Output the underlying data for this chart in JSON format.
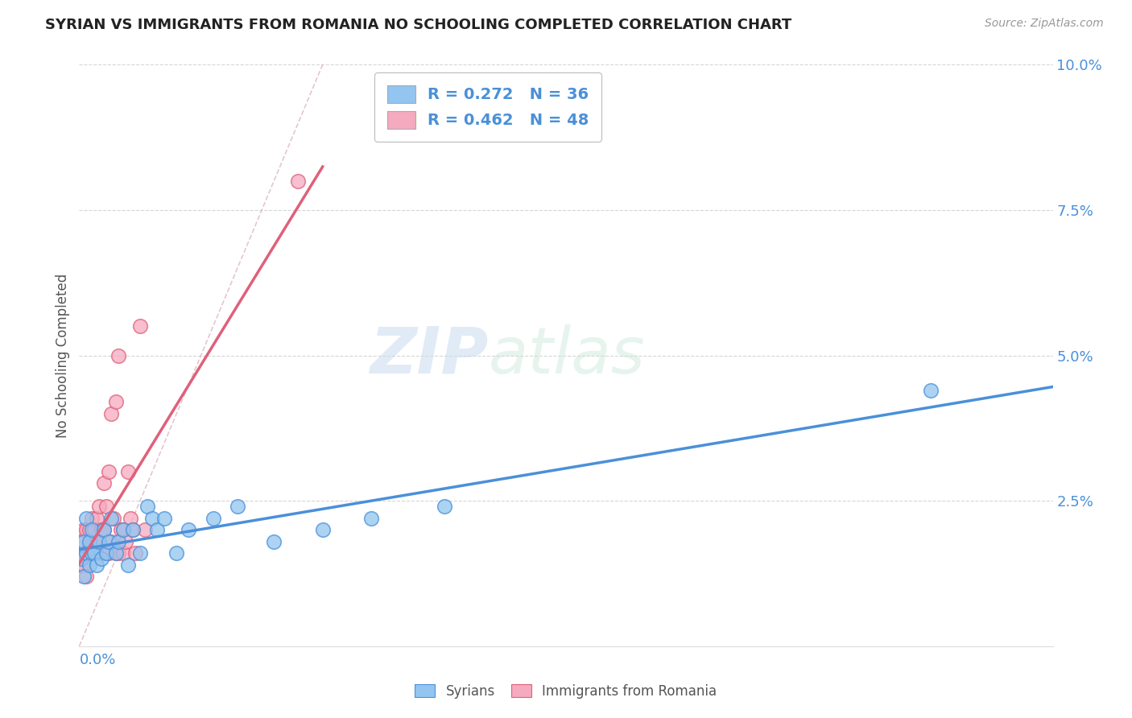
{
  "title": "SYRIAN VS IMMIGRANTS FROM ROMANIA NO SCHOOLING COMPLETED CORRELATION CHART",
  "source": "Source: ZipAtlas.com",
  "ylabel": "No Schooling Completed",
  "ytick_labels": [
    "2.5%",
    "5.0%",
    "7.5%",
    "10.0%"
  ],
  "ytick_values": [
    0.025,
    0.05,
    0.075,
    0.1
  ],
  "xlim": [
    0.0,
    0.4
  ],
  "ylim": [
    0.0,
    0.1
  ],
  "syrians_R": 0.272,
  "syrians_N": 36,
  "romania_R": 0.462,
  "romania_N": 48,
  "syrian_color": "#92C5F0",
  "romania_color": "#F5AABF",
  "syrian_line_color": "#4A90D9",
  "romania_line_color": "#E0607A",
  "background_color": "#FFFFFF",
  "syrians_x": [
    0.001,
    0.002,
    0.002,
    0.003,
    0.003,
    0.004,
    0.004,
    0.005,
    0.005,
    0.006,
    0.007,
    0.008,
    0.009,
    0.01,
    0.011,
    0.012,
    0.013,
    0.015,
    0.016,
    0.018,
    0.02,
    0.022,
    0.025,
    0.028,
    0.03,
    0.032,
    0.035,
    0.04,
    0.045,
    0.055,
    0.065,
    0.08,
    0.1,
    0.12,
    0.15,
    0.35
  ],
  "syrians_y": [
    0.015,
    0.018,
    0.012,
    0.016,
    0.022,
    0.014,
    0.018,
    0.016,
    0.02,
    0.016,
    0.014,
    0.018,
    0.015,
    0.02,
    0.016,
    0.018,
    0.022,
    0.016,
    0.018,
    0.02,
    0.014,
    0.02,
    0.016,
    0.024,
    0.022,
    0.02,
    0.022,
    0.016,
    0.02,
    0.022,
    0.024,
    0.018,
    0.02,
    0.022,
    0.024,
    0.044
  ],
  "romania_x": [
    0.001,
    0.001,
    0.002,
    0.002,
    0.002,
    0.003,
    0.003,
    0.003,
    0.004,
    0.004,
    0.004,
    0.005,
    0.005,
    0.005,
    0.006,
    0.006,
    0.006,
    0.007,
    0.007,
    0.007,
    0.008,
    0.008,
    0.009,
    0.009,
    0.01,
    0.01,
    0.011,
    0.011,
    0.012,
    0.012,
    0.013,
    0.013,
    0.014,
    0.015,
    0.015,
    0.016,
    0.016,
    0.017,
    0.018,
    0.018,
    0.019,
    0.02,
    0.021,
    0.022,
    0.023,
    0.025,
    0.027,
    0.09
  ],
  "romania_y": [
    0.014,
    0.018,
    0.016,
    0.02,
    0.014,
    0.016,
    0.02,
    0.012,
    0.016,
    0.02,
    0.016,
    0.018,
    0.022,
    0.016,
    0.018,
    0.02,
    0.016,
    0.018,
    0.022,
    0.016,
    0.018,
    0.024,
    0.016,
    0.02,
    0.02,
    0.028,
    0.016,
    0.024,
    0.016,
    0.03,
    0.018,
    0.04,
    0.022,
    0.016,
    0.042,
    0.016,
    0.05,
    0.02,
    0.016,
    0.02,
    0.018,
    0.03,
    0.022,
    0.02,
    0.016,
    0.055,
    0.02,
    0.08
  ]
}
